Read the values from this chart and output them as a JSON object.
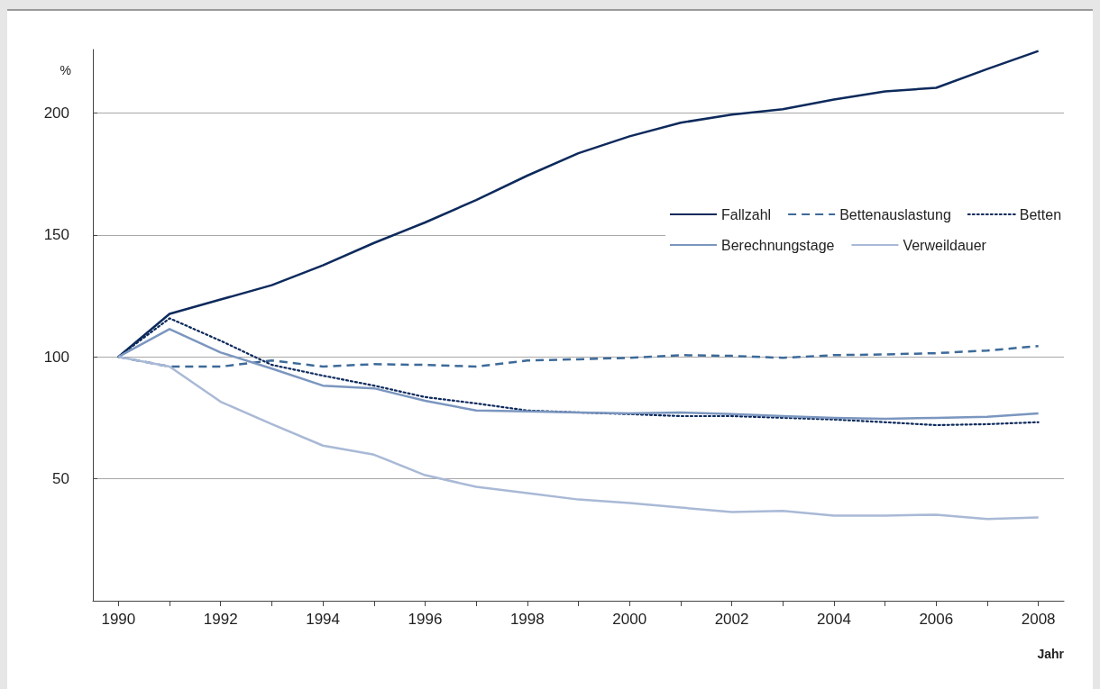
{
  "chart_data": {
    "type": "line",
    "ylabel": "%",
    "xlabel": "Jahr",
    "x": [
      1990,
      1991,
      1992,
      1993,
      1994,
      1995,
      1996,
      1997,
      1998,
      1999,
      2000,
      2001,
      2002,
      2003,
      2004,
      2005,
      2006,
      2007,
      2008
    ],
    "series": [
      {
        "name": "Fallzahl",
        "color": "#0d2a5c",
        "line_style": "solid",
        "values": [
          100,
          117.6,
          123.5,
          129.4,
          137.5,
          146.7,
          155.1,
          164.3,
          174.3,
          183.5,
          190.4,
          196,
          199.3,
          201.5,
          205.5,
          208.8,
          210.3,
          218,
          225.4
        ]
      },
      {
        "name": "Bettenauslastung",
        "color": "#3d6a99",
        "line_style": "dashed",
        "values": [
          100,
          96,
          96,
          98.5,
          96,
          97,
          96.7,
          96,
          98.5,
          99,
          99.6,
          100.7,
          100.4,
          99.6,
          100.7,
          101,
          101.5,
          102.6,
          104.4
        ]
      },
      {
        "name": "Betten",
        "color": "#0d2a5c",
        "line_style": "dotted",
        "values": [
          100,
          115.8,
          106.6,
          96.7,
          92.3,
          88.2,
          83.5,
          80.9,
          78,
          77.2,
          76.5,
          75.7,
          75.7,
          75,
          74.3,
          73.2,
          72,
          72.4,
          73.2
        ]
      },
      {
        "name": "Berechnungstage",
        "color": "#7b96bf",
        "line_style": "solid",
        "values": [
          100,
          111.4,
          101.8,
          95.2,
          88.2,
          87.1,
          82,
          78,
          77.6,
          77.2,
          76.8,
          77.2,
          76.5,
          75.7,
          75,
          74.6,
          75,
          75.4,
          76.8
        ]
      },
      {
        "name": "Verweildauer",
        "color": "#a9b9d6",
        "line_style": "solid",
        "values": [
          100,
          96,
          81.6,
          72.4,
          63.6,
          59.9,
          51.5,
          46.7,
          44.1,
          41.5,
          40.1,
          38.2,
          36.4,
          36.8,
          34.9,
          34.9,
          35.3,
          33.5,
          34.2
        ]
      }
    ],
    "xlim": [
      1989.5,
      2008.5
    ],
    "xticks": [
      1990,
      {
        "value": 1991,
        "label": null
      },
      1992,
      {
        "value": 1993,
        "label": null
      },
      1994,
      {
        "value": 1995,
        "label": null
      },
      1996,
      {
        "value": 1997,
        "label": null
      },
      1998,
      {
        "value": 1999,
        "label": null
      },
      2000,
      {
        "value": 2001,
        "label": null
      },
      2002,
      {
        "value": 2003,
        "label": null
      },
      2004,
      {
        "value": 2005,
        "label": null
      },
      2006,
      {
        "value": 2007,
        "label": null
      },
      2008
    ],
    "ylim": [
      0,
      226
    ],
    "yticks": [
      50,
      100,
      150,
      200
    ],
    "grid": "y",
    "legend": "right",
    "marker": "none"
  }
}
